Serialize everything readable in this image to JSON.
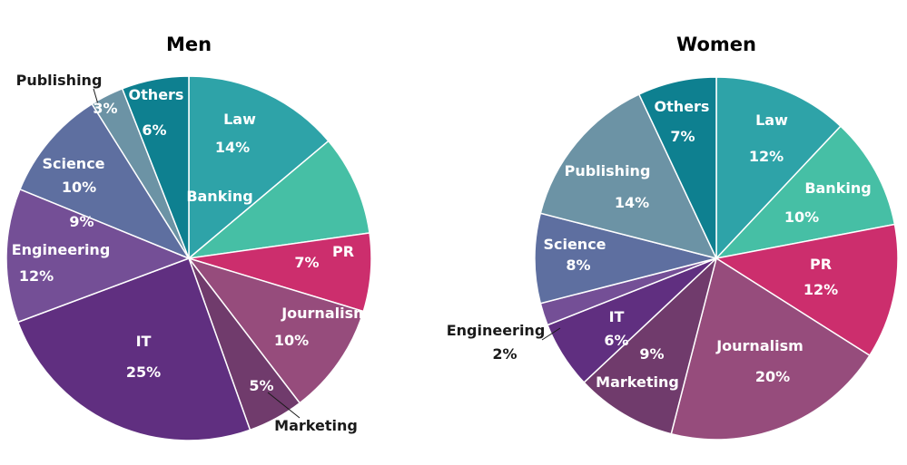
{
  "chart_data": [
    {
      "type": "pie",
      "title": "Men",
      "slices": [
        {
          "label": "Law",
          "value": 14,
          "pct": "14%",
          "color": "#2ea3a8"
        },
        {
          "label": "Banking",
          "value": 9,
          "pct": "9%",
          "color": "#46bfa5"
        },
        {
          "label": "PR",
          "value": 7,
          "pct": "7%",
          "color": "#cc2e6d"
        },
        {
          "label": "Journalism",
          "value": 10,
          "pct": "10%",
          "color": "#964c7c"
        },
        {
          "label": "Marketing",
          "value": 5,
          "pct": "5%",
          "color": "#703b6c"
        },
        {
          "label": "IT",
          "value": 25,
          "pct": "25%",
          "color": "#602f80"
        },
        {
          "label": "Engineering",
          "value": 12,
          "pct": "12%",
          "color": "#744f96"
        },
        {
          "label": "Science",
          "value": 10,
          "pct": "10%",
          "color": "#5e6fa0"
        },
        {
          "label": "Publishing",
          "value": 3,
          "pct": "3%",
          "color": "#6c93a5"
        },
        {
          "label": "Others",
          "value": 6,
          "pct": "6%",
          "color": "#0e8090"
        }
      ]
    },
    {
      "type": "pie",
      "title": "Women",
      "slices": [
        {
          "label": "Law",
          "value": 12,
          "pct": "12%",
          "color": "#2ea3a8"
        },
        {
          "label": "Banking",
          "value": 10,
          "pct": "10%",
          "color": "#46bfa5"
        },
        {
          "label": "PR",
          "value": 12,
          "pct": "12%",
          "color": "#cc2e6d"
        },
        {
          "label": "Journalism",
          "value": 20,
          "pct": "20%",
          "color": "#964c7c"
        },
        {
          "label": "Marketing",
          "value": 9,
          "pct": "9%",
          "color": "#703b6c"
        },
        {
          "label": "IT",
          "value": 6,
          "pct": "6%",
          "color": "#602f80"
        },
        {
          "label": "Engineering",
          "value": 2,
          "pct": "2%",
          "color": "#744f96"
        },
        {
          "label": "Science",
          "value": 8,
          "pct": "8%",
          "color": "#5e6fa0"
        },
        {
          "label": "Publishing",
          "value": 14,
          "pct": "14%",
          "color": "#6c93a5"
        },
        {
          "label": "Others",
          "value": 7,
          "pct": "7%",
          "color": "#0e8090"
        }
      ]
    }
  ]
}
